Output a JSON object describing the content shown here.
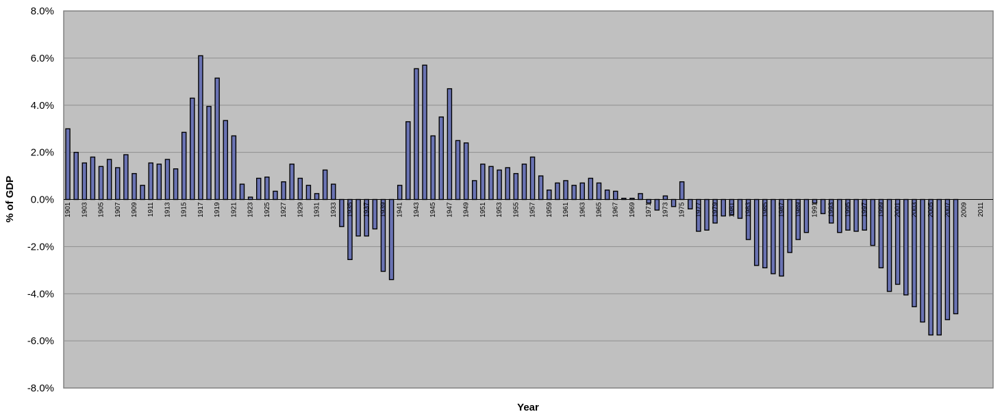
{
  "chart_data": {
    "type": "bar",
    "xlabel": "Year",
    "ylabel": "% of GDP",
    "ylim": [
      -8.0,
      8.0
    ],
    "y_ticks": [
      "-8.0%",
      "-6.0%",
      "-4.0%",
      "-2.0%",
      "0.0%",
      "2.0%",
      "4.0%",
      "6.0%",
      "8.0%"
    ],
    "x_tick_labels": [
      "1901",
      "1903",
      "1905",
      "1907",
      "1909",
      "1911",
      "1913",
      "1915",
      "1917",
      "1919",
      "1921",
      "1923",
      "1925",
      "1927",
      "1929",
      "1931",
      "1933",
      "1935",
      "1937",
      "1939",
      "1941",
      "1943",
      "1945",
      "1947",
      "1949",
      "1951",
      "1953",
      "1955",
      "1957",
      "1959",
      "1961",
      "1963",
      "1965",
      "1967",
      "1969",
      "1971",
      "1973",
      "1975",
      "1977",
      "1979",
      "1981",
      "1983",
      "1985",
      "1987",
      "1989",
      "1991",
      "1993",
      "1995",
      "1997",
      "1999",
      "2001",
      "2003",
      "2005",
      "2007",
      "2009",
      "2011"
    ],
    "grid": true,
    "legend": "none",
    "colors": {
      "plot_background": "#c0c0c0",
      "bar_fill": "#6a73b3",
      "bar_stroke": "#000000",
      "gridline": "#8e8e8e",
      "frame": "#808080"
    },
    "x": [
      1901,
      1902,
      1903,
      1904,
      1905,
      1906,
      1907,
      1908,
      1909,
      1910,
      1911,
      1912,
      1913,
      1914,
      1915,
      1916,
      1917,
      1918,
      1919,
      1920,
      1921,
      1922,
      1923,
      1924,
      1925,
      1926,
      1927,
      1928,
      1929,
      1930,
      1931,
      1932,
      1933,
      1934,
      1935,
      1936,
      1937,
      1938,
      1939,
      1940,
      1941,
      1942,
      1943,
      1944,
      1945,
      1946,
      1947,
      1948,
      1949,
      1950,
      1951,
      1952,
      1953,
      1954,
      1955,
      1956,
      1957,
      1958,
      1959,
      1960,
      1961,
      1962,
      1963,
      1964,
      1965,
      1966,
      1967,
      1968,
      1969,
      1970,
      1971,
      1972,
      1973,
      1974,
      1975,
      1976,
      1977,
      1978,
      1979,
      1980,
      1981,
      1982,
      1983,
      1984,
      1985,
      1986,
      1987,
      1988,
      1989,
      1990,
      1991,
      1992,
      1993,
      1994,
      1995,
      1996,
      1997,
      1998,
      1999,
      2000,
      2001,
      2002,
      2003,
      2004,
      2005,
      2006,
      2007,
      2008,
      2009,
      2010,
      2011,
      2012
    ],
    "values": [
      3.0,
      2.0,
      1.55,
      1.8,
      1.4,
      1.7,
      1.35,
      1.9,
      1.1,
      0.6,
      1.55,
      1.5,
      1.7,
      1.3,
      2.85,
      4.3,
      6.1,
      3.95,
      5.15,
      3.35,
      2.7,
      0.65,
      0.1,
      0.9,
      0.95,
      0.35,
      0.75,
      1.5,
      0.9,
      0.6,
      0.25,
      1.25,
      0.65,
      -1.15,
      -2.55,
      -1.55,
      -1.55,
      -1.25,
      -3.05,
      -3.4,
      0.6,
      3.3,
      5.55,
      5.7,
      2.7,
      3.5,
      4.7,
      2.5,
      2.4,
      0.8,
      1.5,
      1.4,
      1.25,
      1.35,
      1.1,
      1.5,
      1.8,
      1.0,
      0.4,
      0.7,
      0.8,
      0.6,
      0.7,
      0.9,
      0.7,
      0.4,
      0.35,
      0.05,
      0.05,
      0.25,
      -0.15,
      -0.45,
      0.15,
      -0.3,
      0.75,
      -0.4,
      -1.35,
      -1.3,
      -1.0,
      -0.7,
      -0.65,
      -0.8,
      -1.7,
      -2.8,
      -2.9,
      -3.15,
      -3.25,
      -2.25,
      -1.7,
      -1.4,
      -0.15,
      -0.6,
      -1.0,
      -1.4,
      -1.3,
      -1.35,
      -1.3,
      -1.95,
      -2.9,
      -3.9,
      -3.6,
      -4.05,
      -4.55,
      -5.2,
      -5.75,
      -5.75,
      -5.1,
      -4.85,
      0,
      0,
      0,
      0
    ]
  }
}
